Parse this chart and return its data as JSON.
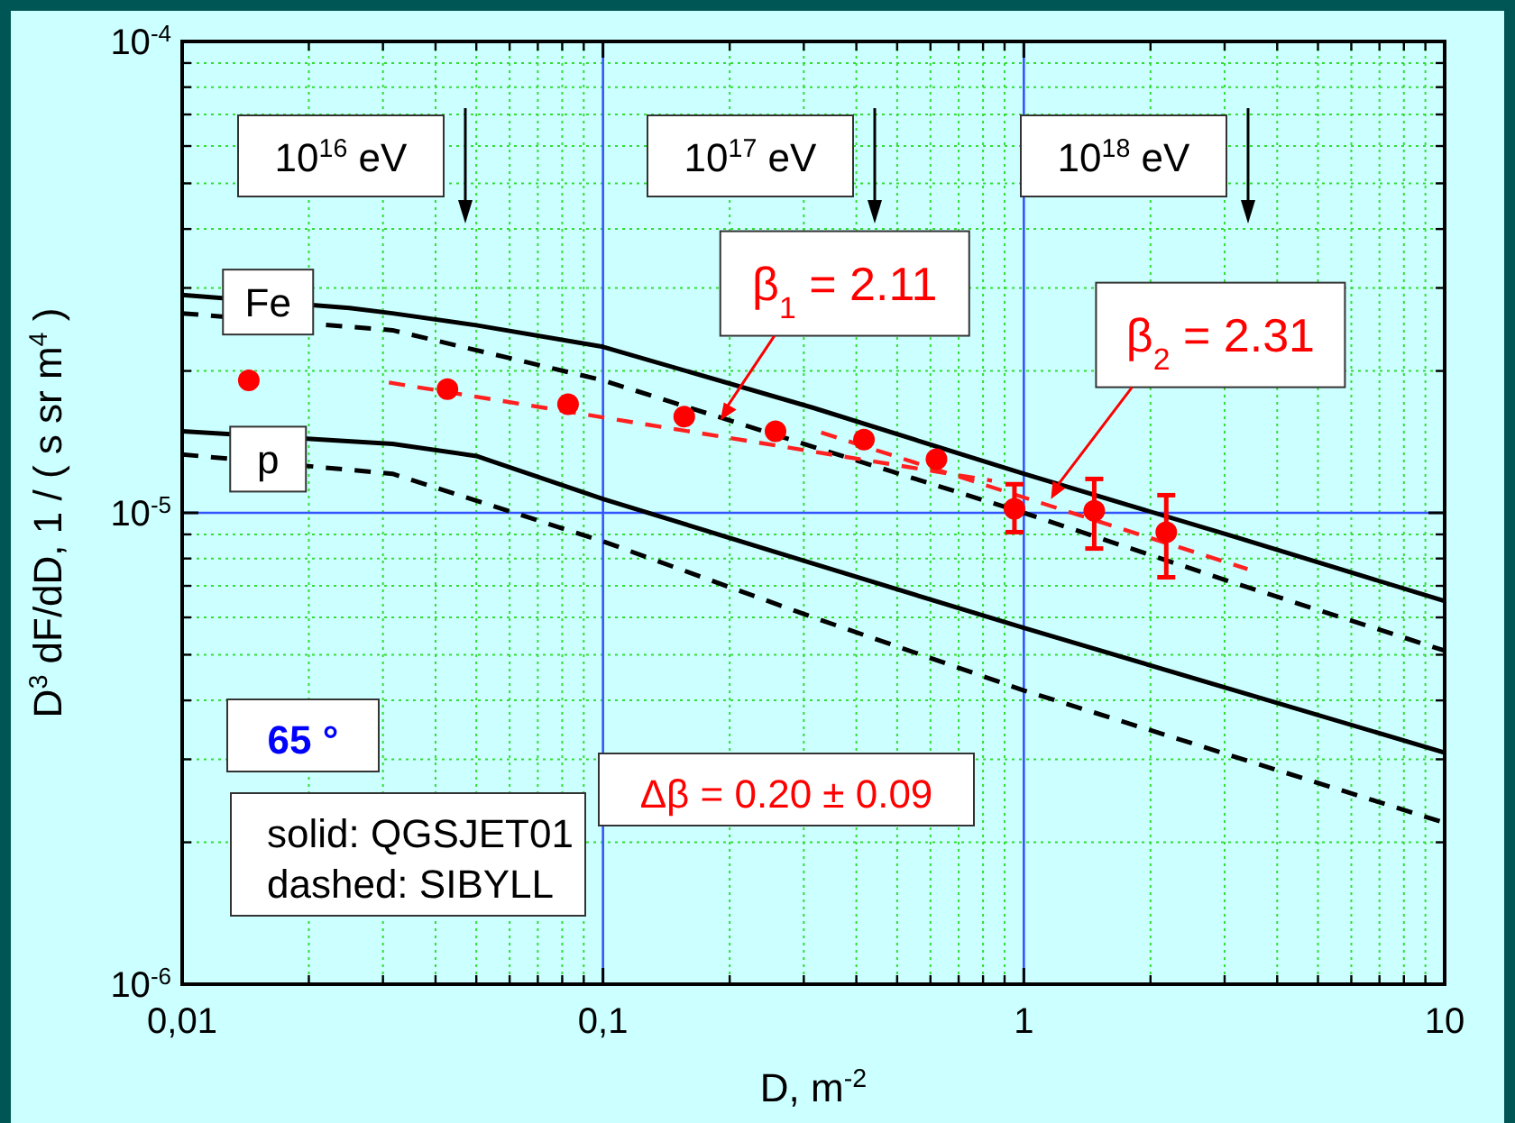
{
  "chart_data": {
    "type": "line",
    "xlabel": "D, m$^{-2}$",
    "ylabel": "D$^{3}$ dF/dD, 1 / ( s sr m$^{4}$ )",
    "log": "xy",
    "grid": true,
    "xlim": [
      0.01,
      10
    ],
    "xticks": [
      {
        "value": 0.01,
        "label": "0,01"
      },
      {
        "value": 0.02,
        "label": null
      },
      {
        "value": 0.03,
        "label": null
      },
      {
        "value": 0.04,
        "label": null
      },
      {
        "value": 0.05,
        "label": null
      },
      {
        "value": 0.06,
        "label": null
      },
      {
        "value": 0.07,
        "label": null
      },
      {
        "value": 0.08,
        "label": null
      },
      {
        "value": 0.09,
        "label": null
      },
      {
        "value": 0.1,
        "label": "0,1"
      },
      {
        "value": 0.2,
        "label": null
      },
      {
        "value": 0.3,
        "label": null
      },
      {
        "value": 0.4,
        "label": null
      },
      {
        "value": 0.5,
        "label": null
      },
      {
        "value": 0.6,
        "label": null
      },
      {
        "value": 0.7,
        "label": null
      },
      {
        "value": 0.8,
        "label": null
      },
      {
        "value": 0.9,
        "label": null
      },
      1,
      {
        "value": 2,
        "label": null
      },
      {
        "value": 3,
        "label": null
      },
      {
        "value": 4,
        "label": null
      },
      {
        "value": 5,
        "label": null
      },
      {
        "value": 6,
        "label": null
      },
      {
        "value": 7,
        "label": null
      },
      {
        "value": 8,
        "label": null
      },
      {
        "value": 9,
        "label": null
      },
      10
    ],
    "ylim": [
      1e-06,
      0.0001
    ],
    "yticks": [
      {
        "value": 1e-06,
        "label": "10$^{-6}$"
      },
      {
        "value": 2e-06,
        "label": null
      },
      {
        "value": 3e-06,
        "label": null
      },
      {
        "value": 4e-06,
        "label": null
      },
      {
        "value": 5e-06,
        "label": null
      },
      {
        "value": 6e-06,
        "label": null
      },
      {
        "value": 7e-06,
        "label": null
      },
      {
        "value": 8e-06,
        "label": null
      },
      {
        "value": 9e-06,
        "label": null
      },
      {
        "value": 1e-05,
        "label": "10$^{-5}$"
      },
      {
        "value": 2e-05,
        "label": null
      },
      {
        "value": 3e-05,
        "label": null
      },
      {
        "value": 4e-05,
        "label": null
      },
      {
        "value": 5e-05,
        "label": null
      },
      {
        "value": 6e-05,
        "label": null
      },
      {
        "value": 7e-05,
        "label": null
      },
      {
        "value": 8e-05,
        "label": null
      },
      {
        "value": 9e-05,
        "label": null
      },
      {
        "value": 0.0001,
        "label": "10$^{-4}$"
      }
    ],
    "series": [
      {
        "color": "#000000",
        "line_style": "solid",
        "marker": "none",
        "x": [
          0.01,
          0.025,
          0.0316,
          0.05,
          0.1,
          0.316,
          1,
          3.16,
          10
        ],
        "values": [
          2.9e-05,
          2.72e-05,
          2.65e-05,
          2.5e-05,
          2.25e-05,
          1.67e-05,
          1.21e-05,
          8.9e-06,
          6.5e-06
        ]
      },
      {
        "color": "#000000",
        "line_style": "dashed",
        "marker": "none",
        "x": [
          0.01,
          0.0316,
          0.1,
          0.316,
          1,
          3.16,
          10
        ],
        "values": [
          2.65e-05,
          2.44e-05,
          1.91e-05,
          1.38e-05,
          1e-05,
          7.1e-06,
          5.1e-06
        ]
      },
      {
        "color": "#000000",
        "line_style": "solid",
        "marker": "none",
        "x": [
          0.01,
          0.0316,
          0.05,
          0.1,
          0.316,
          1,
          10
        ],
        "values": [
          1.49e-05,
          1.4e-05,
          1.32e-05,
          1.07e-05,
          7.8e-06,
          5.7e-06,
          3.1e-06
        ]
      },
      {
        "color": "#000000",
        "line_style": "dashed",
        "marker": "none",
        "x": [
          0.01,
          0.0316,
          0.1,
          0.316,
          1,
          10
        ],
        "values": [
          1.33e-05,
          1.21e-05,
          8.7e-06,
          6e-06,
          4.2e-06,
          2.2e-06
        ]
      },
      {
        "color": "#ff2020",
        "line_style": "dashed",
        "marker": "none",
        "x": [
          0.031,
          0.84
        ],
        "values": [
          1.89e-05,
          1.17e-05
        ]
      },
      {
        "color": "#ff2020",
        "line_style": "dashed",
        "marker": "none",
        "x": [
          0.33,
          3.4
        ],
        "values": [
          1.48e-05,
          7.6e-06
        ]
      },
      {
        "type": "scatter",
        "color": "#ff0000",
        "marker": "circle",
        "x": [
          0.0144,
          0.0427,
          0.0826,
          0.156,
          0.257,
          0.417,
          0.62,
          0.95,
          1.47,
          2.18
        ],
        "values": [
          1.91e-05,
          1.83e-05,
          1.7e-05,
          1.6e-05,
          1.49e-05,
          1.43e-05,
          1.3e-05,
          1.02e-05,
          1.01e-05,
          9.1e-06
        ],
        "errors": [
          null,
          null,
          null,
          null,
          null,
          null,
          null,
          [
            9.1e-06,
            1.15e-05
          ],
          [
            8.4e-06,
            1.18e-05
          ],
          [
            7.3e-06,
            1.09e-05
          ]
        ]
      }
    ],
    "annotations": [
      "10$^{16}$ eV",
      "10$^{17}$ eV",
      "10$^{18}$ eV",
      {
        "text": "Fe",
        "x": 0.016,
        "y": 2.8e-05
      },
      {
        "text": "p",
        "x": 0.016,
        "y": 1.3e-05
      },
      {
        "text": "β$_{1}$ = 2.11",
        "x": 0.19,
        "y": 1.57e-05
      },
      {
        "text": "β$_{2}$ = 2.31",
        "x": 1.16,
        "y": 1.07e-05
      },
      "65 °",
      "solid: QGSJET01\ndashed: SIBYLL",
      "Δβ = 0.20 ± 0.09"
    ]
  }
}
